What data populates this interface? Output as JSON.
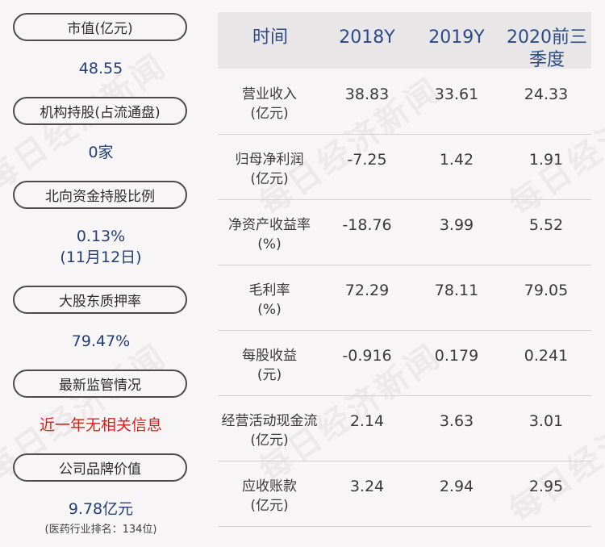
{
  "watermark_text": "每日经济新闻",
  "left_panel": {
    "items": [
      {
        "label": "市值(亿元)",
        "value": "48.55"
      },
      {
        "label": "机构持股(占流通盘)",
        "value": "0家"
      },
      {
        "label": "北向资金持股比例",
        "value": "0.13%",
        "value2": "(11月12日)"
      },
      {
        "label": "大股东质押率",
        "value": "79.47%"
      },
      {
        "label": "最新监管情况",
        "value": "近一年无相关信息"
      },
      {
        "label": "公司品牌价值",
        "value": "9.78亿元",
        "note": "(医药行业排名：134位)"
      }
    ]
  },
  "table": {
    "headers": [
      "时间",
      "2018Y",
      "2019Y",
      "2020前三季度"
    ],
    "rows": [
      {
        "label": "营业收入",
        "unit": "(亿元)",
        "values": [
          "38.83",
          "33.61",
          "24.33"
        ]
      },
      {
        "label": "归母净利润",
        "unit": "(亿元)",
        "values": [
          "-7.25",
          "1.42",
          "1.91"
        ]
      },
      {
        "label": "净资产收益率",
        "unit": "(%)",
        "values": [
          "-18.76",
          "3.99",
          "5.52"
        ]
      },
      {
        "label": "毛利率",
        "unit": "(%)",
        "values": [
          "72.29",
          "78.11",
          "79.05"
        ]
      },
      {
        "label": "每股收益",
        "unit": "(元)",
        "values": [
          "-0.916",
          "0.179",
          "0.241"
        ]
      },
      {
        "label": "经营活动现金流",
        "unit": "(亿元)",
        "values": [
          "2.14",
          "3.63",
          "3.01"
        ]
      },
      {
        "label": "应收账款",
        "unit": "(亿元)",
        "values": [
          "3.24",
          "2.94",
          "2.95"
        ]
      }
    ]
  },
  "colors": {
    "background": "#f8f5f6",
    "value_blue": "#233e78",
    "header_blue": "#2c4a86",
    "alert_red": "#d8201c",
    "header_bg": "#e9e6e8"
  }
}
